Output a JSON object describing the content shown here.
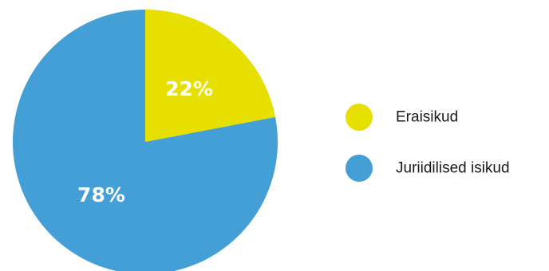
{
  "chart_data": {
    "type": "pie",
    "slices": [
      {
        "label": "Eraisikud",
        "value": 22,
        "display": "22%",
        "color": "#e6df00"
      },
      {
        "label": "Juriidilised isikud",
        "value": 78,
        "display": "78%",
        "color": "#459fd7"
      }
    ],
    "legend_placement": "right"
  }
}
